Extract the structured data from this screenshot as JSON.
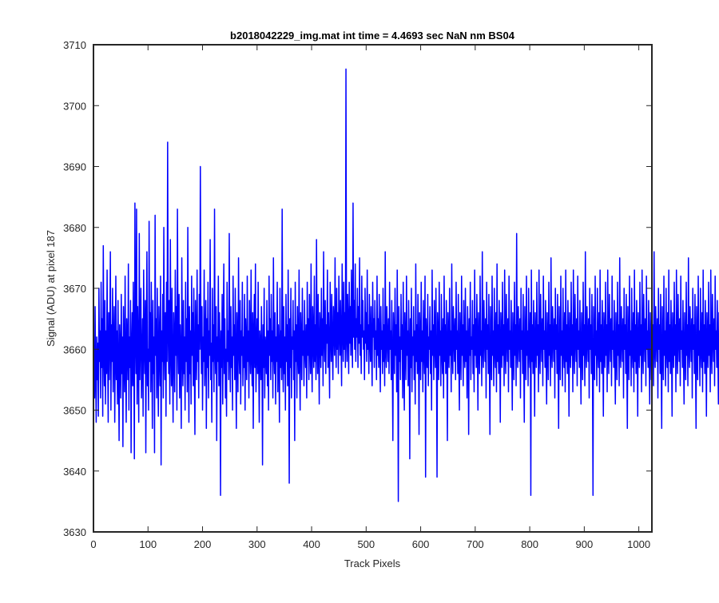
{
  "chart_data": {
    "type": "line",
    "title": "b2018042229_img.mat int time = 4.4693 sec  NaN nm BS04",
    "xlabel": "Track Pixels",
    "ylabel": "Signal (ADU) at pixel 187",
    "xlim": [
      0,
      1024
    ],
    "ylim": [
      3630,
      3710
    ],
    "xticks": [
      0,
      100,
      200,
      300,
      400,
      500,
      600,
      700,
      800,
      900,
      1000
    ],
    "yticks": [
      3630,
      3640,
      3650,
      3660,
      3670,
      3680,
      3690,
      3700,
      3710
    ],
    "grid": false,
    "line_color": "#0000ff",
    "series": [
      {
        "x_start": 1,
        "x_step": 1,
        "values": [
          3660,
          3652,
          3667,
          3656,
          3648,
          3662,
          3655,
          3661,
          3649,
          3670,
          3658,
          3663,
          3652,
          3671,
          3657,
          3665,
          3649,
          3677,
          3660,
          3654,
          3668,
          3651,
          3663,
          3656,
          3673,
          3659,
          3648,
          3666,
          3655,
          3662,
          3676,
          3650,
          3664,
          3658,
          3670,
          3653,
          3661,
          3667,
          3648,
          3659,
          3672,
          3655,
          3663,
          3651,
          3668,
          3657,
          3645,
          3664,
          3660,
          3652,
          3669,
          3656,
          3662,
          3644,
          3667,
          3659,
          3653,
          3672,
          3658,
          3648,
          3665,
          3661,
          3655,
          3674,
          3650,
          3662,
          3657,
          3668,
          3643,
          3660,
          3666,
          3654,
          3671,
          3659,
          3642,
          3684,
          3663,
          3656,
          3683,
          3651,
          3667,
          3660,
          3648,
          3679,
          3655,
          3662,
          3670,
          3652,
          3658,
          3665,
          3649,
          3673,
          3661,
          3656,
          3668,
          3643,
          3663,
          3676,
          3654,
          3660,
          3650,
          3681,
          3658,
          3666,
          3653,
          3671,
          3660,
          3647,
          3668,
          3656,
          3662,
          3643,
          3682,
          3659,
          3665,
          3652,
          3670,
          3657,
          3649,
          3667,
          3660,
          3654,
          3672,
          3641,
          3663,
          3658,
          3669,
          3652,
          3680,
          3660,
          3655,
          3666,
          3649,
          3671,
          3658,
          3694,
          3663,
          3656,
          3668,
          3651,
          3678,
          3660,
          3654,
          3670,
          3657,
          3648,
          3666,
          3661,
          3653,
          3673,
          3659,
          3667,
          3650,
          3683,
          3662,
          3656,
          3669,
          3652,
          3664,
          3658,
          3647,
          3675,
          3660,
          3654,
          3668,
          3656,
          3662,
          3650,
          3671,
          3658,
          3665,
          3653,
          3680,
          3660,
          3648,
          3667,
          3656,
          3663,
          3651,
          3672,
          3659,
          3666,
          3654,
          3670,
          3657,
          3646,
          3668,
          3661,
          3655,
          3673,
          3658,
          3664,
          3652,
          3669,
          3660,
          3690,
          3663,
          3656,
          3667,
          3650,
          3662,
          3658,
          3673,
          3654,
          3660,
          3668,
          3647,
          3665,
          3657,
          3671,
          3652,
          3663,
          3659,
          3678,
          3655,
          3661,
          3648,
          3670,
          3658,
          3664,
          3653,
          3683,
          3660,
          3656,
          3667,
          3645,
          3662,
          3658,
          3672,
          3654,
          3666,
          3660,
          3636,
          3663,
          3657,
          3669,
          3651,
          3662,
          3674,
          3656,
          3665,
          3652,
          3660,
          3649,
          3671,
          3658,
          3663,
          3655,
          3679,
          3660,
          3653,
          3667,
          3657,
          3662,
          3650,
          3672,
          3659,
          3664,
          3655,
          3670,
          3658,
          3647,
          3666,
          3661,
          3653,
          3675,
          3660,
          3656,
          3668,
          3651,
          3663,
          3659,
          3671,
          3654,
          3662,
          3657,
          3669,
          3650,
          3665,
          3660,
          3655,
          3672,
          3658,
          3663,
          3652,
          3668,
          3661,
          3656,
          3673,
          3659,
          3654,
          3666,
          3647,
          3662,
          3669,
          3657,
          3674,
          3653,
          3660,
          3665,
          3656,
          3671,
          3658,
          3648,
          3663,
          3661,
          3655,
          3667,
          3659,
          3641,
          3664,
          3657,
          3670,
          3652,
          3662,
          3660,
          3656,
          3668,
          3654,
          3663,
          3650,
          3672,
          3659,
          3665,
          3655,
          3669,
          3658,
          3663,
          3652,
          3675,
          3660,
          3656,
          3666,
          3651,
          3662,
          3658,
          3671,
          3653,
          3664,
          3660,
          3648,
          3670,
          3657,
          3663,
          3655,
          3683,
          3659,
          3653,
          3667,
          3656,
          3662,
          3650,
          3669,
          3658,
          3664,
          3654,
          3673,
          3659,
          3638,
          3665,
          3657,
          3670,
          3652,
          3662,
          3660,
          3668,
          3655,
          3663,
          3645,
          3671,
          3658,
          3664,
          3652,
          3667,
          3660,
          3656,
          3673,
          3658,
          3650,
          3666,
          3661,
          3655,
          3670,
          3659,
          3663,
          3654,
          3668,
          3660,
          3657,
          3664,
          3652,
          3671,
          3659,
          3665,
          3655,
          3669,
          3661,
          3656,
          3674,
          3659,
          3653,
          3667,
          3662,
          3657,
          3672,
          3658,
          3664,
          3655,
          3678,
          3661,
          3656,
          3669,
          3660,
          3651,
          3666,
          3663,
          3657,
          3670,
          3659,
          3665,
          3654,
          3676,
          3662,
          3658,
          3668,
          3656,
          3664,
          3661,
          3673,
          3657,
          3666,
          3660,
          3652,
          3671,
          3663,
          3658,
          3669,
          3661,
          3655,
          3667,
          3664,
          3659,
          3675,
          3662,
          3657,
          3670,
          3660,
          3666,
          3656,
          3672,
          3663,
          3659,
          3668,
          3661,
          3654,
          3674,
          3664,
          3658,
          3671,
          3660,
          3666,
          3657,
          3706,
          3662,
          3658,
          3669,
          3664,
          3656,
          3671,
          3661,
          3667,
          3659,
          3673,
          3663,
          3657,
          3684,
          3662,
          3668,
          3660,
          3674,
          3658,
          3665,
          3662,
          3670,
          3657,
          3667,
          3661,
          3675,
          3659,
          3664,
          3656,
          3672,
          3662,
          3668,
          3660,
          3663,
          3655,
          3670,
          3661,
          3666,
          3658,
          3673,
          3660,
          3664,
          3656,
          3669,
          3662,
          3658,
          3667,
          3660,
          3654,
          3671,
          3662,
          3665,
          3657,
          3668,
          3660,
          3663,
          3655,
          3672,
          3659,
          3665,
          3657,
          3669,
          3661,
          3653,
          3667,
          3660,
          3663,
          3656,
          3670,
          3658,
          3664,
          3654,
          3676,
          3660,
          3657,
          3667,
          3662,
          3658,
          3665,
          3656,
          3671,
          3660,
          3663,
          3655,
          3668,
          3658,
          3645,
          3666,
          3661,
          3656,
          3670,
          3659,
          3664,
          3653,
          3673,
          3660,
          3635,
          3667,
          3658,
          3662,
          3655,
          3669,
          3660,
          3664,
          3652,
          3671,
          3658,
          3650,
          3666,
          3661,
          3655,
          3672,
          3659,
          3663,
          3654,
          3668,
          3660,
          3642,
          3665,
          3657,
          3670,
          3653,
          3662,
          3659,
          3667,
          3655,
          3663,
          3651,
          3674,
          3658,
          3664,
          3656,
          3669,
          3660,
          3646,
          3666,
          3662,
          3655,
          3671,
          3658,
          3663,
          3653,
          3668,
          3660,
          3656,
          3672,
          3639,
          3665,
          3661,
          3657,
          3669,
          3654,
          3662,
          3660,
          3667,
          3656,
          3663,
          3650,
          3673,
          3659,
          3664,
          3655,
          3668,
          3661,
          3657,
          3670,
          3658,
          3639,
          3666,
          3662,
          3655,
          3671,
          3659,
          3663,
          3654,
          3669,
          3660,
          3656,
          3665,
          3652,
          3672,
          3658,
          3664,
          3656,
          3668,
          3660,
          3645,
          3666,
          3662,
          3657,
          3670,
          3659,
          3663,
          3653,
          3674,
          3660,
          3656,
          3667,
          3662,
          3658,
          3665,
          3655,
          3671,
          3660,
          3663,
          3656,
          3669,
          3658,
          3650,
          3666,
          3661,
          3655,
          3672,
          3659,
          3664,
          3654,
          3668,
          3660,
          3657,
          3670,
          3658,
          3663,
          3652,
          3667,
          3661,
          3646,
          3665,
          3659,
          3671,
          3655,
          3662,
          3660,
          3668,
          3656,
          3664,
          3653,
          3673,
          3659,
          3665,
          3657,
          3669,
          3661,
          3650,
          3666,
          3662,
          3656,
          3672,
          3659,
          3663,
          3654,
          3676,
          3660,
          3657,
          3668,
          3662,
          3658,
          3665,
          3652,
          3671,
          3660,
          3664,
          3656,
          3669,
          3658,
          3646,
          3667,
          3661,
          3655,
          3672,
          3659,
          3663,
          3654,
          3670,
          3660,
          3657,
          3666,
          3653,
          3674,
          3658,
          3664,
          3656,
          3668,
          3661,
          3648,
          3666,
          3662,
          3657,
          3671,
          3659,
          3664,
          3654,
          3673,
          3660,
          3656,
          3669,
          3662,
          3658,
          3665,
          3653,
          3672,
          3660,
          3663,
          3657,
          3668,
          3659,
          3650,
          3666,
          3661,
          3655,
          3671,
          3659,
          3664,
          3654,
          3679,
          3660,
          3657,
          3667,
          3662,
          3658,
          3665,
          3652,
          3670,
          3660,
          3663,
          3656,
          3669,
          3658,
          3648,
          3667,
          3661,
          3655,
          3672,
          3659,
          3663,
          3654,
          3670,
          3660,
          3657,
          3666,
          3636,
          3673,
          3658,
          3664,
          3656,
          3668,
          3661,
          3649,
          3666,
          3662,
          3657,
          3671,
          3659,
          3664,
          3653,
          3673,
          3660,
          3656,
          3669,
          3662,
          3658,
          3665,
          3654,
          3672,
          3660,
          3663,
          3657,
          3668,
          3659,
          3651,
          3666,
          3661,
          3655,
          3671,
          3659,
          3664,
          3654,
          3675,
          3660,
          3657,
          3667,
          3662,
          3658,
          3665,
          3652,
          3670,
          3660,
          3664,
          3656,
          3669,
          3658,
          3647,
          3667,
          3661,
          3655,
          3672,
          3659,
          3663,
          3654,
          3670,
          3660,
          3657,
          3666,
          3653,
          3673,
          3658,
          3664,
          3656,
          3668,
          3661,
          3649,
          3666,
          3662,
          3657,
          3671,
          3659,
          3664,
          3653,
          3673,
          3660,
          3656,
          3669,
          3662,
          3658,
          3665,
          3654,
          3672,
          3660,
          3663,
          3657,
          3668,
          3659,
          3651,
          3666,
          3661,
          3655,
          3671,
          3659,
          3664,
          3654,
          3676,
          3660,
          3657,
          3667,
          3662,
          3658,
          3665,
          3652,
          3670,
          3660,
          3664,
          3656,
          3669,
          3658,
          3636,
          3667,
          3661,
          3655,
          3672,
          3659,
          3663,
          3654,
          3670,
          3660,
          3657,
          3666,
          3653,
          3673,
          3658,
          3664,
          3656,
          3668,
          3661,
          3649,
          3666,
          3662,
          3657,
          3671,
          3659,
          3664,
          3653,
          3673,
          3660,
          3656,
          3669,
          3662,
          3658,
          3665,
          3654,
          3672,
          3660,
          3663,
          3657,
          3668,
          3659,
          3651,
          3666,
          3661,
          3655,
          3671,
          3659,
          3664,
          3654,
          3675,
          3660,
          3657,
          3667,
          3662,
          3658,
          3665,
          3652,
          3670,
          3660,
          3664,
          3656,
          3669,
          3658,
          3647,
          3667,
          3661,
          3655,
          3672,
          3659,
          3663,
          3654,
          3670,
          3660,
          3657,
          3666,
          3653,
          3673,
          3658,
          3664,
          3656,
          3668,
          3661,
          3649,
          3666,
          3662,
          3657,
          3671,
          3659,
          3664,
          3653,
          3673,
          3660,
          3656,
          3669,
          3662,
          3658,
          3665,
          3654,
          3672,
          3660,
          3663,
          3657,
          3668,
          3659,
          3651,
          3666,
          3661,
          3655,
          3671,
          3659,
          3664,
          3654,
          3676,
          3660,
          3657,
          3667,
          3662,
          3658,
          3665,
          3652,
          3670,
          3660,
          3664,
          3656,
          3669,
          3658,
          3647,
          3667,
          3661,
          3655,
          3672,
          3659,
          3663,
          3654,
          3670,
          3660,
          3657,
          3666,
          3653,
          3673,
          3658,
          3664,
          3656,
          3668,
          3661,
          3649,
          3666,
          3662,
          3657,
          3671,
          3659,
          3664,
          3653,
          3673,
          3660,
          3656,
          3669,
          3662,
          3658,
          3665,
          3654,
          3672,
          3660,
          3663,
          3657,
          3668,
          3659,
          3651,
          3666,
          3661,
          3655,
          3671,
          3659,
          3664,
          3654,
          3675,
          3660,
          3657,
          3667,
          3662,
          3658,
          3665,
          3652,
          3670,
          3660,
          3664,
          3656,
          3669,
          3658,
          3647,
          3667,
          3661,
          3655,
          3672,
          3659,
          3663,
          3654,
          3670,
          3660,
          3657,
          3666,
          3653,
          3673,
          3658,
          3664,
          3656,
          3668,
          3661,
          3649,
          3666,
          3662,
          3657,
          3671,
          3659,
          3664,
          3653,
          3673,
          3660,
          3656,
          3669,
          3662,
          3658,
          3665,
          3654,
          3672,
          3660,
          3663,
          3657,
          3668,
          3659,
          3651,
          3666,
          3661,
          3655,
          3671,
          3659,
          3664,
          3654,
          3676,
          3660,
          3657,
          3667,
          3662,
          3658,
          3665,
          3652,
          3670,
          3660,
          3664,
          3656,
          3669,
          3658,
          3647,
          3667,
          3661,
          3655,
          3672,
          3659,
          3663,
          3654,
          3670,
          3660,
          3657,
          3666
        ]
      }
    ]
  }
}
